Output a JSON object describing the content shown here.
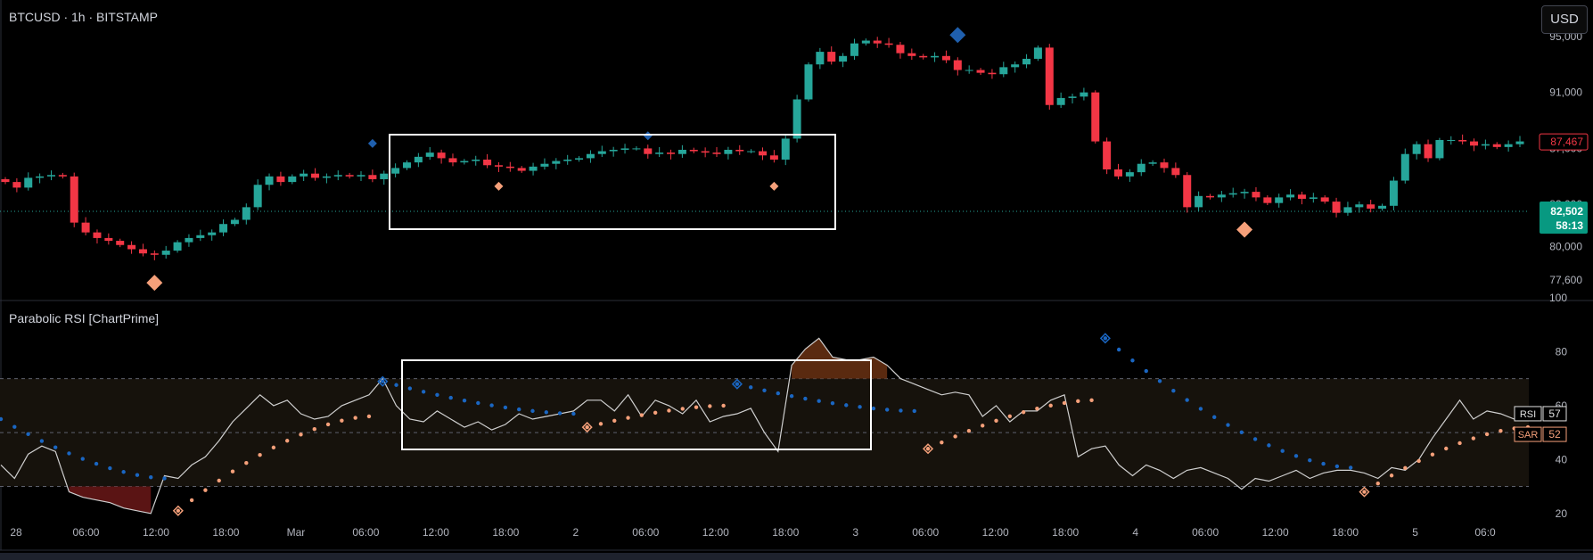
{
  "header": {
    "symbol_title": "BTCUSD · 1h · BITSTAMP",
    "indicator_title": "Parabolic RSI [ChartPrime]",
    "currency_button": "USD"
  },
  "chart_data": [
    {
      "type": "candlestick",
      "title": "BTCUSD · 1h · BITSTAMP",
      "y_ticks": [
        77600,
        80000,
        83000,
        87000,
        91000,
        95000
      ],
      "y_tick_labels": [
        "77,600",
        "80,000",
        "83,000",
        "87,000",
        "91,000",
        "95,000"
      ],
      "ylim": [
        76200,
        97600
      ],
      "current_price": "87,467",
      "reference_price": "82,502",
      "countdown": "58:13",
      "x_tick_labels": [
        "28",
        "06:00",
        "12:00",
        "18:00",
        "Mar",
        "06:00",
        "12:00",
        "18:00",
        "2",
        "06:00",
        "12:00",
        "18:00",
        "3",
        "06:00",
        "12:00",
        "18:00",
        "4",
        "06:00",
        "12:00",
        "18:00",
        "5",
        "06:0"
      ],
      "colors": {
        "up": "#26a69a",
        "down": "#f23645",
        "buy_signal": "#f5a07a",
        "sell_signal": "#1f5fad",
        "reference_line": "#26a69a"
      },
      "candles_close_approx": [
        84600,
        84200,
        84900,
        85000,
        85100,
        85000,
        81700,
        81000,
        80600,
        80400,
        80100,
        79800,
        79500,
        79400,
        79700,
        80300,
        80600,
        80800,
        81000,
        81600,
        81900,
        82800,
        84400,
        85000,
        84600,
        85000,
        85200,
        84900,
        85000,
        85100,
        85000,
        85100,
        84800,
        85200,
        85600,
        86000,
        86400,
        86700,
        86300,
        86000,
        86100,
        86200,
        85800,
        85700,
        85600,
        85400,
        85700,
        85900,
        86100,
        86200,
        86300,
        86600,
        86800,
        86900,
        87000,
        87000,
        86600,
        86700,
        86600,
        86900,
        86800,
        86700,
        86600,
        86900,
        86800,
        86800,
        86500,
        86200,
        87700,
        90500,
        93000,
        93900,
        93200,
        93600,
        94500,
        94700,
        94500,
        94400,
        93800,
        93600,
        93500,
        93600,
        93300,
        92600,
        92600,
        92400,
        92300,
        92800,
        93000,
        93400,
        94200,
        90100,
        90600,
        90700,
        91000,
        87500,
        85500,
        85000,
        85300,
        85900,
        86000,
        85600,
        85100,
        82800,
        83600,
        83500,
        83700,
        83800,
        83900,
        83500,
        83100,
        83500,
        83700,
        83400,
        83500,
        83200,
        82400,
        82800,
        83000,
        82700,
        82900,
        84700,
        86600,
        87300,
        86300,
        87600,
        87600,
        87500,
        87200,
        87300,
        87100,
        87300,
        87500
      ]
    },
    {
      "type": "line",
      "title": "Parabolic RSI [ChartPrime]",
      "ylim": [
        10,
        100
      ],
      "y_ticks": [
        20,
        40,
        60,
        80,
        100
      ],
      "y_tick_labels": [
        "20",
        "40",
        "60",
        "80",
        "100"
      ],
      "overbought": 70,
      "oversold": 30,
      "midline": 50,
      "series": [
        {
          "name": "RSI",
          "last_value": 57,
          "color": "#cfcfcf",
          "values": [
            38,
            33,
            42,
            45,
            43,
            28,
            26,
            25,
            24,
            22,
            21,
            20,
            34,
            33,
            38,
            41,
            47,
            54,
            59,
            64,
            60,
            62,
            57,
            55,
            56,
            60,
            62,
            64,
            70,
            60,
            55,
            54,
            58,
            55,
            52,
            54,
            51,
            53,
            57,
            55,
            56,
            57,
            58,
            62,
            62,
            58,
            64,
            56,
            62,
            60,
            57,
            62,
            54,
            56,
            57,
            59,
            50,
            43,
            75,
            81,
            85,
            78,
            77,
            77,
            78,
            75,
            70,
            68,
            66,
            64,
            65,
            64,
            56,
            60,
            54,
            58,
            58,
            62,
            64,
            41,
            44,
            45,
            38,
            34,
            38,
            36,
            33,
            36,
            37,
            35,
            33,
            29,
            33,
            32,
            34,
            36,
            33,
            35,
            36,
            36,
            35,
            33,
            37,
            36,
            40,
            48,
            55,
            62,
            55,
            58,
            57,
            55,
            57
          ]
        },
        {
          "name": "SAR",
          "last_value": 52,
          "color_bull": "#f5a07a",
          "color_bear": "#1a66c2"
        }
      ],
      "signals": [
        {
          "type": "buy",
          "value": 21
        },
        {
          "type": "sell",
          "value": 69
        },
        {
          "type": "buy",
          "value": 52
        },
        {
          "type": "sell",
          "value": 68
        },
        {
          "type": "buy",
          "value": 44
        },
        {
          "type": "sell",
          "value": 85
        },
        {
          "type": "buy",
          "value": 28
        }
      ]
    }
  ]
}
